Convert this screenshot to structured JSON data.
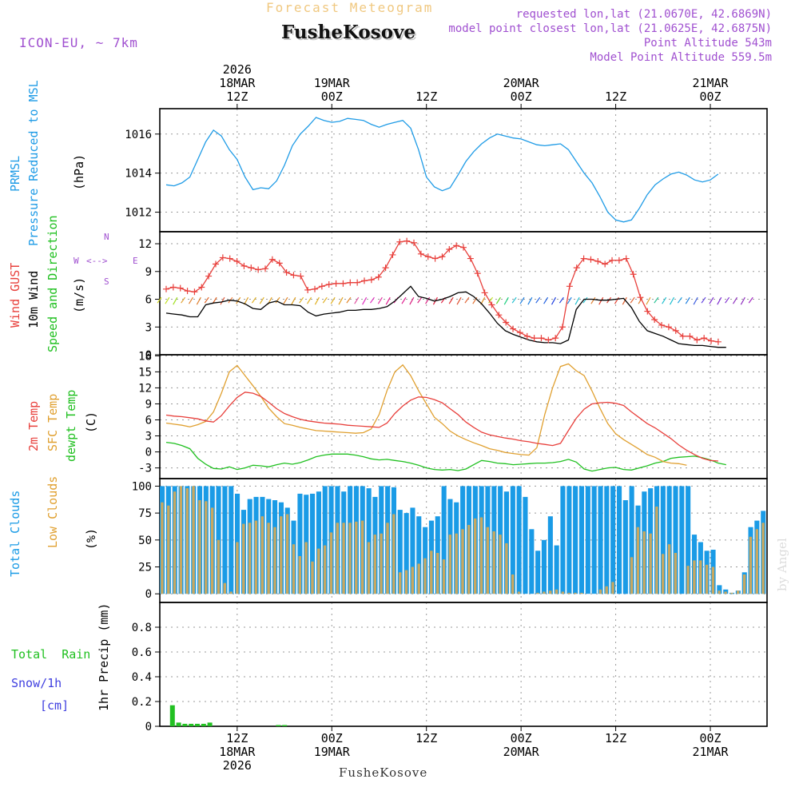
{
  "header": {
    "subtitle": "Forecast Meteogram",
    "location": "FusheKosove",
    "model": "ICON-EU, ~ 7km",
    "requested": "requested lon,lat (21.0670E, 42.6869N)",
    "closest": "model point closest lon,lat (21.0625E, 42.6875N)",
    "altitude": "Point Altitude 543m",
    "model_altitude": "Model Point Altitude 559.5m",
    "footer_location": "FusheKosove",
    "watermark": "by Angel"
  },
  "time_axis": {
    "top_labels": [
      {
        "lines": [
          "2026",
          "18MAR",
          "12Z"
        ]
      },
      {
        "lines": [
          "19MAR",
          "00Z"
        ]
      },
      {
        "lines": [
          "12Z"
        ]
      },
      {
        "lines": [
          "20MAR",
          "00Z"
        ]
      },
      {
        "lines": [
          "12Z"
        ]
      },
      {
        "lines": [
          "21MAR",
          "00Z"
        ]
      }
    ],
    "bottom_labels": [
      {
        "lines": [
          "12Z",
          "18MAR",
          "2026"
        ]
      },
      {
        "lines": [
          "00Z",
          "19MAR"
        ]
      },
      {
        "lines": [
          "12Z"
        ]
      },
      {
        "lines": [
          "00Z",
          "20MAR"
        ]
      },
      {
        "lines": [
          "12Z"
        ]
      },
      {
        "lines": [
          "00Z",
          "21MAR"
        ]
      }
    ]
  },
  "panel_labels": {
    "pressure": {
      "name": "PRMSL",
      "desc": "Pressure Reduced to MSL",
      "unit": "(hPa)"
    },
    "wind": {
      "gust": "Wind GUST",
      "wind10": "10m Wind",
      "speed": "Speed and Direction",
      "unit": "(m/s)",
      "compass_w": "W",
      "compass_e": "E",
      "compass_n": "N",
      "compass_s": "S"
    },
    "temp": {
      "t2m": "2m Temp",
      "sfc": "SFC Temp",
      "dew": "dewpt Temp",
      "unit": "(C)"
    },
    "clouds": {
      "total": "Total Clouds",
      "low": "Low Clouds",
      "unit": "(%)"
    },
    "precip": {
      "rain": "Total  Rain",
      "snow": "Snow/1h",
      "snow_unit": "[cm]",
      "axis": "1hr Precip (mm)"
    }
  },
  "colors": {
    "pressure": "#1e9be6",
    "gust": "#e8403c",
    "wind": "#000000",
    "t2m": "#e8403c",
    "sfc": "#e0a030",
    "dew": "#20c020",
    "total_clouds": "#1a9be6",
    "low_clouds": "#c8a860",
    "rain": "#22c022",
    "meta": "#a050d0",
    "subtitle": "#f0c880",
    "snow": "#4040e0"
  },
  "chart_data": [
    {
      "type": "line",
      "title": "PRMSL Pressure Reduced to MSL",
      "ylabel": "(hPa)",
      "ylim": [
        1011,
        1017.3
      ],
      "yticks": [
        1012,
        1014,
        1016
      ],
      "x_hours": "hours from 18MAR 03Z, hourly",
      "series": [
        {
          "name": "PRMSL",
          "values": [
            1013.4,
            1013.35,
            1013.5,
            1013.8,
            1014.7,
            1015.6,
            1016.2,
            1015.9,
            1015.2,
            1014.7,
            1013.8,
            1013.15,
            1013.25,
            1013.2,
            1013.6,
            1014.4,
            1015.4,
            1016.0,
            1016.4,
            1016.85,
            1016.7,
            1016.6,
            1016.65,
            1016.8,
            1016.75,
            1016.7,
            1016.5,
            1016.35,
            1016.5,
            1016.6,
            1016.7,
            1016.3,
            1015.2,
            1013.8,
            1013.3,
            1013.1,
            1013.25,
            1013.9,
            1014.6,
            1015.1,
            1015.5,
            1015.8,
            1016.0,
            1015.9,
            1015.8,
            1015.75,
            1015.6,
            1015.45,
            1015.4,
            1015.45,
            1015.5,
            1015.2,
            1014.6,
            1014.0,
            1013.5,
            1012.8,
            1012.0,
            1011.6,
            1011.5,
            1011.6,
            1012.2,
            1012.9,
            1013.4,
            1013.7,
            1013.95,
            1014.05,
            1013.9,
            1013.65,
            1013.55,
            1013.65,
            1013.95
          ]
        }
      ]
    },
    {
      "type": "line",
      "title": "Wind GUST / 10m Wind Speed and Direction",
      "ylabel": "(m/s)",
      "ylim": [
        0,
        13.3
      ],
      "yticks": [
        0,
        3,
        6,
        9,
        12
      ],
      "series": [
        {
          "name": "Wind GUST",
          "values": [
            7.1,
            7.3,
            7.2,
            6.9,
            6.8,
            7.3,
            8.5,
            9.8,
            10.5,
            10.4,
            10.1,
            9.6,
            9.4,
            9.2,
            9.3,
            10.3,
            9.9,
            8.9,
            8.6,
            8.5,
            7.0,
            7.1,
            7.4,
            7.6,
            7.7,
            7.7,
            7.8,
            7.8,
            8.0,
            8.1,
            8.4,
            9.4,
            10.8,
            12.2,
            12.3,
            12.1,
            10.9,
            10.6,
            10.4,
            10.6,
            11.4,
            11.8,
            11.6,
            10.4,
            8.8,
            6.7,
            5.4,
            4.3,
            3.5,
            2.8,
            2.4,
            2.0,
            1.8,
            1.8,
            1.6,
            1.8,
            3.0,
            7.4,
            9.4,
            10.4,
            10.3,
            10.1,
            9.8,
            10.2,
            10.2,
            10.4,
            8.7,
            6.2,
            4.7,
            3.8,
            3.2,
            3.0,
            2.6,
            2.0,
            2.0,
            1.6,
            1.8,
            1.5,
            1.4
          ]
        },
        {
          "name": "10m Wind",
          "values": [
            4.5,
            4.4,
            4.3,
            4.1,
            4.1,
            5.4,
            5.6,
            5.7,
            5.9,
            5.8,
            5.5,
            5.0,
            4.9,
            5.6,
            5.8,
            5.4,
            5.4,
            5.3,
            4.6,
            4.2,
            4.4,
            4.5,
            4.6,
            4.8,
            4.8,
            4.9,
            4.9,
            5.0,
            5.2,
            5.8,
            6.6,
            7.4,
            6.3,
            6.1,
            5.8,
            6.0,
            6.3,
            6.7,
            6.8,
            6.3,
            5.5,
            4.5,
            3.4,
            2.6,
            2.2,
            1.9,
            1.6,
            1.4,
            1.3,
            1.3,
            1.2,
            1.6,
            4.9,
            6.0,
            6.0,
            5.9,
            5.9,
            6.0,
            6.1,
            5.1,
            3.6,
            2.6,
            2.3,
            2.0,
            1.6,
            1.2,
            1.1,
            1.0,
            1.0,
            0.9,
            0.8,
            0.8
          ]
        }
      ],
      "barb_colors": [
        "#d8e020",
        "#c0e020",
        "#a0e020",
        "#e0a030",
        "#e08030",
        "#e08030",
        "#e06020",
        "#e06020",
        "#e06040",
        "#f08040",
        "#e09020",
        "#e0a020",
        "#e0b020",
        "#e0b020",
        "#e0a020",
        "#e09020",
        "#e08020",
        "#e0a020",
        "#e0b020",
        "#e0b020",
        "#e0b020",
        "#e0b020",
        "#e0b020",
        "#e0a020",
        "#e08020",
        "#e050a0",
        "#e030c0",
        "#e030c0",
        "#e030a0",
        "#e02090",
        "#e02090",
        "#e02090",
        "#d82080",
        "#d82080",
        "#d82080",
        "#e02040",
        "#e02040",
        "#e03030",
        "#e05030",
        "#e06030",
        "#e07030",
        "#e09020",
        "#c0e020",
        "#60d020",
        "#20d080",
        "#20c0d0",
        "#2080e0",
        "#2080e0",
        "#2060e0",
        "#2060e0",
        "#2040e0",
        "#2040e0",
        "#2080e0",
        "#20c0d0",
        "#20c0d0",
        "#e08030",
        "#e04030",
        "#e04030",
        "#e04030",
        "#e06030",
        "#e06030",
        "#e08030",
        "#e0a030",
        "#20c090",
        "#20c0d0",
        "#20c0d0",
        "#20a0e0",
        "#2080e0",
        "#4060e0",
        "#6040e0",
        "#8030d0",
        "#8030d0",
        "#8030d0",
        "#9030c0",
        "#9030c0",
        "#a020c0"
      ]
    },
    {
      "type": "line",
      "title": "2m Temp / SFC Temp / dewpt Temp",
      "ylabel": "(C)",
      "ylim": [
        -5,
        18.2
      ],
      "yticks": [
        -3,
        0,
        3,
        6,
        9,
        12,
        15,
        18
      ],
      "series": [
        {
          "name": "2m Temp",
          "values": [
            6.9,
            6.7,
            6.6,
            6.4,
            6.2,
            5.8,
            5.6,
            6.8,
            8.6,
            10.2,
            11.2,
            11.0,
            10.4,
            9.3,
            8.1,
            7.2,
            6.6,
            6.1,
            5.8,
            5.6,
            5.4,
            5.3,
            5.2,
            5.0,
            4.9,
            4.8,
            4.7,
            4.6,
            5.4,
            7.2,
            8.6,
            9.7,
            10.3,
            10.2,
            9.8,
            9.2,
            8.1,
            7.0,
            5.6,
            4.6,
            3.7,
            3.2,
            2.9,
            2.6,
            2.4,
            2.1,
            1.9,
            1.6,
            1.4,
            1.2,
            1.6,
            4.0,
            6.3,
            8.0,
            9.0,
            9.2,
            9.3,
            9.1,
            8.7,
            7.5,
            6.4,
            5.3,
            4.5,
            3.5,
            2.5,
            1.3,
            0.3,
            -0.5,
            -1.2,
            -1.6,
            -1.7
          ]
        },
        {
          "name": "SFC Temp",
          "values": [
            5.4,
            5.2,
            5.0,
            4.7,
            5.1,
            5.7,
            7.5,
            11.0,
            15.0,
            16.2,
            14.3,
            12.4,
            10.4,
            8.2,
            6.6,
            5.3,
            5.0,
            4.6,
            4.3,
            4.0,
            3.9,
            3.8,
            3.7,
            3.6,
            3.5,
            3.6,
            4.3,
            7.0,
            11.5,
            15.0,
            16.3,
            14.3,
            11.5,
            9.0,
            6.5,
            5.3,
            3.9,
            3.0,
            2.3,
            1.7,
            1.2,
            0.6,
            0.3,
            -0.1,
            -0.3,
            -0.5,
            -0.6,
            0.8,
            7.0,
            12.0,
            16.0,
            16.5,
            15.2,
            14.3,
            11.4,
            8.2,
            5.3,
            3.4,
            2.3,
            1.4,
            0.5,
            -0.5,
            -1.0,
            -1.8,
            -2.1,
            -2.2,
            -2.5
          ]
        },
        {
          "name": "dewpt Temp",
          "values": [
            1.8,
            1.6,
            1.2,
            0.6,
            -1.2,
            -2.3,
            -3.1,
            -3.2,
            -2.8,
            -3.3,
            -3.0,
            -2.5,
            -2.6,
            -2.8,
            -2.4,
            -2.1,
            -2.3,
            -2.0,
            -1.5,
            -0.9,
            -0.6,
            -0.4,
            -0.4,
            -0.4,
            -0.6,
            -0.9,
            -1.3,
            -1.5,
            -1.4,
            -1.6,
            -1.8,
            -2.1,
            -2.5,
            -3.0,
            -3.3,
            -3.4,
            -3.3,
            -3.5,
            -3.2,
            -2.4,
            -1.6,
            -1.8,
            -2.1,
            -2.2,
            -2.4,
            -2.3,
            -2.2,
            -2.1,
            -2.1,
            -2.0,
            -1.8,
            -1.4,
            -1.9,
            -3.2,
            -3.6,
            -3.3,
            -3.0,
            -2.9,
            -3.3,
            -3.4,
            -3.0,
            -2.6,
            -2.1,
            -1.8,
            -1.2,
            -1.0,
            -0.9,
            -0.8,
            -1.1,
            -1.5,
            -2.1,
            -2.4
          ]
        }
      ]
    },
    {
      "type": "bar",
      "title": "Total Clouds / Low Clouds",
      "ylabel": "(%)",
      "ylim": [
        -8,
        107
      ],
      "yticks": [
        0,
        25,
        50,
        75,
        100
      ],
      "series": [
        {
          "name": "Total Clouds",
          "values": [
            100,
            100,
            100,
            100,
            100,
            100,
            100,
            100,
            100,
            100,
            100,
            100,
            93,
            78,
            88,
            90,
            90,
            88,
            87,
            85,
            80,
            68,
            93,
            92,
            93,
            95,
            100,
            100,
            100,
            95,
            100,
            100,
            100,
            98,
            90,
            100,
            100,
            99,
            78,
            75,
            80,
            72,
            62,
            68,
            72,
            100,
            88,
            85,
            100,
            100,
            100,
            100,
            100,
            100,
            100,
            95,
            100,
            100,
            90,
            60,
            40,
            50,
            72,
            45,
            100,
            100,
            100,
            100,
            100,
            100,
            100,
            100,
            100,
            100,
            87,
            100,
            82,
            95,
            98,
            100,
            100,
            100,
            100,
            100,
            100,
            55,
            48,
            40,
            41,
            8,
            4,
            1,
            3,
            20,
            62,
            68,
            77
          ]
        },
        {
          "name": "Low Clouds",
          "values": [
            85,
            82,
            95,
            100,
            98,
            100,
            87,
            86,
            80,
            50,
            10,
            2,
            48,
            65,
            66,
            68,
            72,
            66,
            62,
            72,
            74,
            46,
            35,
            48,
            30,
            42,
            45,
            57,
            66,
            66,
            66,
            67,
            68,
            48,
            55,
            56,
            66,
            74,
            20,
            22,
            25,
            28,
            33,
            40,
            38,
            32,
            55,
            56,
            60,
            64,
            70,
            71,
            62,
            58,
            55,
            47,
            18,
            2,
            0,
            0,
            1,
            2,
            3,
            4,
            2,
            1,
            1,
            1,
            0,
            0,
            4,
            7,
            11,
            0,
            0,
            34,
            62,
            58,
            56,
            81,
            37,
            46,
            38,
            0,
            26,
            31,
            31,
            27,
            25,
            3,
            2,
            1,
            3,
            18,
            53,
            60,
            66
          ]
        }
      ]
    },
    {
      "type": "bar",
      "title": "1hr Precip",
      "ylabel": "1hr Precip (mm)",
      "ylim": [
        0,
        1.0
      ],
      "yticks": [
        0,
        0.2,
        0.4,
        0.6,
        0.8
      ],
      "series": [
        {
          "name": "Total Rain",
          "values": [
            0,
            0.17,
            0.03,
            0.02,
            0.02,
            0.02,
            0.02,
            0.03,
            0,
            0,
            0,
            0,
            0,
            0,
            0,
            0,
            0,
            0,
            0.01,
            0.01,
            0,
            0,
            0,
            0,
            0
          ]
        }
      ]
    }
  ]
}
